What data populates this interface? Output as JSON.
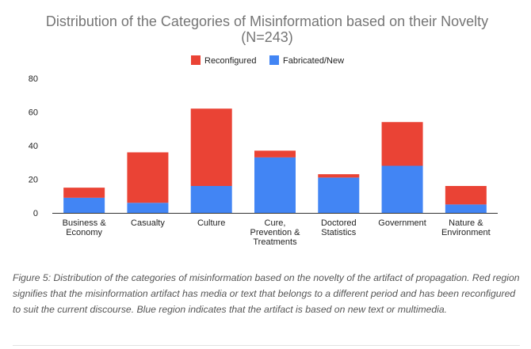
{
  "chart_data": {
    "type": "bar",
    "stacked": true,
    "title_lines": [
      "Distribution of the Categories of Misinformation based on their Novelty",
      "(N=243)"
    ],
    "categories": [
      [
        "Business &",
        "Economy"
      ],
      [
        "Casualty"
      ],
      [
        "Culture"
      ],
      [
        "Cure,",
        "Prevention &",
        "Treatments"
      ],
      [
        "Doctored",
        "Statistics"
      ],
      [
        "Government"
      ],
      [
        "Nature &",
        "Environment"
      ]
    ],
    "series": [
      {
        "name": "Fabricated/New",
        "color": "#4285f4",
        "values": [
          9,
          6,
          16,
          33,
          21,
          28,
          5
        ]
      },
      {
        "name": "Reconfigured",
        "color": "#ea4335",
        "values": [
          6,
          30,
          46,
          4,
          2,
          26,
          11
        ]
      }
    ],
    "legend_order": [
      "Reconfigured",
      "Fabricated/New"
    ],
    "legend_position": "top-center",
    "ylim": [
      0,
      80
    ],
    "yticks": [
      0,
      20,
      40,
      60,
      80
    ],
    "xlabel": "",
    "ylabel": "",
    "grid": false
  },
  "caption": "Figure 5: Distribution of the categories of misinformation based on the novelty of the artifact of propagation. Red region signifies that the misinformation artifact has media or text that belongs to a different period and has been reconfigured to suit the current discourse. Blue region indicates that the artifact is based on new text or multimedia."
}
